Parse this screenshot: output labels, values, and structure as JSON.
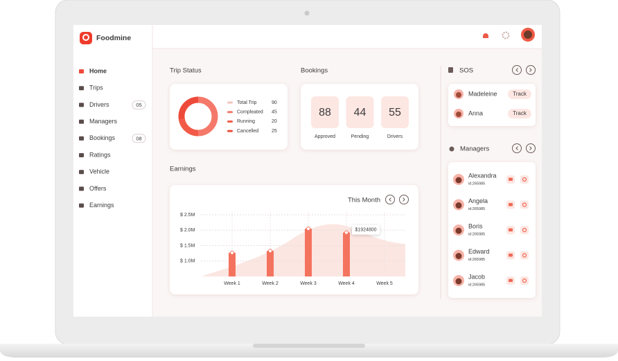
{
  "app": {
    "brand": "Foodmine"
  },
  "sidebar": {
    "items": [
      {
        "label": "Home"
      },
      {
        "label": "Trips"
      },
      {
        "label": "Drivers",
        "badge": "05"
      },
      {
        "label": "Managers"
      },
      {
        "label": "Bookings",
        "badge": "08"
      },
      {
        "label": "Ratings"
      },
      {
        "label": "Vehicle"
      },
      {
        "label": "Offers"
      },
      {
        "label": "Earnings"
      }
    ]
  },
  "trip_status": {
    "title": "Trip Status",
    "type": "pie",
    "total": {
      "label": "Total Trip",
      "value": 90,
      "color": "#f2c4bd"
    },
    "segments": [
      {
        "label": "Compleated",
        "value": 45,
        "color": "#f5796a"
      },
      {
        "label": "Running",
        "value": 20,
        "color": "#f25a47"
      },
      {
        "label": "Cancelled",
        "value": 25,
        "color": "#ee4a3a"
      }
    ]
  },
  "bookings": {
    "title": "Bookings",
    "items": [
      {
        "value": 88,
        "label": "Approved"
      },
      {
        "value": 44,
        "label": "Pending"
      },
      {
        "value": 55,
        "label": "Drivers"
      }
    ]
  },
  "earnings": {
    "title": "Earnings",
    "period": "This Month",
    "type": "bar",
    "color": "#f4735f",
    "categories": [
      "Week 1",
      "Week 2",
      "Week 3",
      "Week 4",
      "Week 5"
    ],
    "values": [
      1270000,
      1330000,
      2050000,
      1924800,
      null
    ],
    "value_labels": [
      null,
      null,
      null,
      "$1924800",
      null
    ],
    "ylim": [
      500000,
      2500000
    ],
    "yticks": [
      {
        "value": 1000000,
        "label": "$ 1.0M"
      },
      {
        "value": 1500000,
        "label": "$ 1.5M"
      },
      {
        "value": 2000000,
        "label": "$ 2.0M"
      },
      {
        "value": 2500000,
        "label": "$ 2.5M"
      }
    ],
    "grid": true
  },
  "sos": {
    "title": "SOS",
    "people": [
      {
        "name": "Madeleine",
        "action": "Track"
      },
      {
        "name": "Anna",
        "action": "Track"
      }
    ]
  },
  "managers": {
    "title": "Managers",
    "people": [
      {
        "name": "Alexandra",
        "id": "id:265985"
      },
      {
        "name": "Angela",
        "id": "id:265985"
      },
      {
        "name": "Boris",
        "id": "id:265985"
      },
      {
        "name": "Edward",
        "id": "id:265985"
      },
      {
        "name": "Jacob",
        "id": "id:265985"
      }
    ]
  }
}
